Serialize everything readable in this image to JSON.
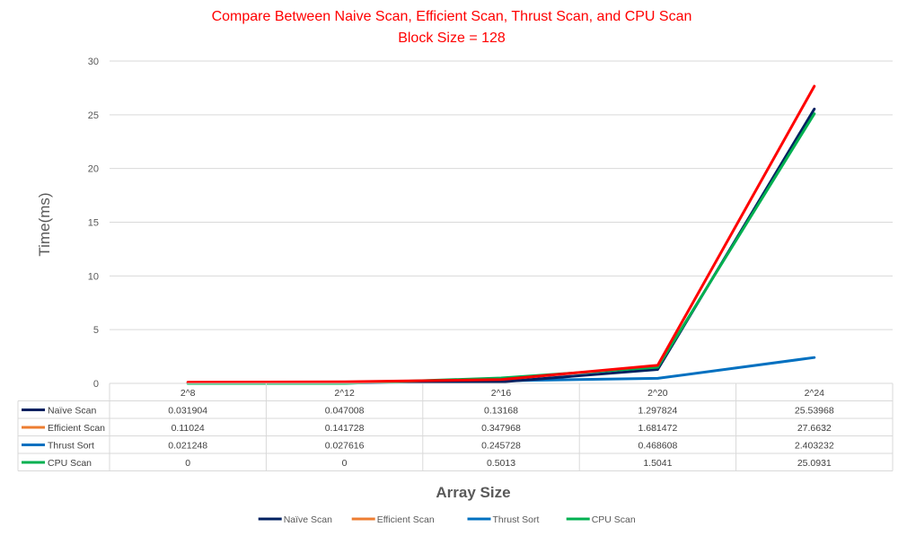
{
  "chart_data": {
    "type": "line",
    "title": "Compare Between Naive Scan, Efficient Scan, Thrust Scan, and CPU Scan",
    "subtitle": "Block Size = 128",
    "xlabel": "Array Size",
    "ylabel": "Time(ms)",
    "ylim": [
      0,
      30
    ],
    "yticks": [
      "0",
      "5",
      "10",
      "15",
      "20",
      "25",
      "30"
    ],
    "grid": true,
    "legend_position": "bottom",
    "categories": [
      "2^8",
      "2^12",
      "2^16",
      "2^20",
      "2^24"
    ],
    "series": [
      {
        "name": "Naïve Scan",
        "color": "#002060",
        "values": [
          0.031904,
          0.047008,
          0.13168,
          1.297824,
          25.53968
        ],
        "labels": [
          "0.031904",
          "0.047008",
          "0.13168",
          "1.297824",
          "25.53968"
        ]
      },
      {
        "name": "Efficient Scan",
        "color": "#ed7d31",
        "line_color": "#ff0000",
        "values": [
          0.11024,
          0.141728,
          0.347968,
          1.681472,
          27.6632
        ],
        "labels": [
          "0.11024",
          "0.141728",
          "0.347968",
          "1.681472",
          "27.6632"
        ]
      },
      {
        "name": "Thrust Sort",
        "color": "#0070c0",
        "values": [
          0.021248,
          0.027616,
          0.245728,
          0.468608,
          2.403232
        ],
        "labels": [
          "0.021248",
          "0.027616",
          "0.245728",
          "0.468608",
          "2.403232"
        ]
      },
      {
        "name": "CPU Scan",
        "color": "#00b050",
        "values": [
          0,
          0,
          0.5013,
          1.5041,
          25.0931
        ],
        "labels": [
          "0",
          "0",
          "0.5013",
          "1.5041",
          "25.0931"
        ]
      }
    ]
  }
}
